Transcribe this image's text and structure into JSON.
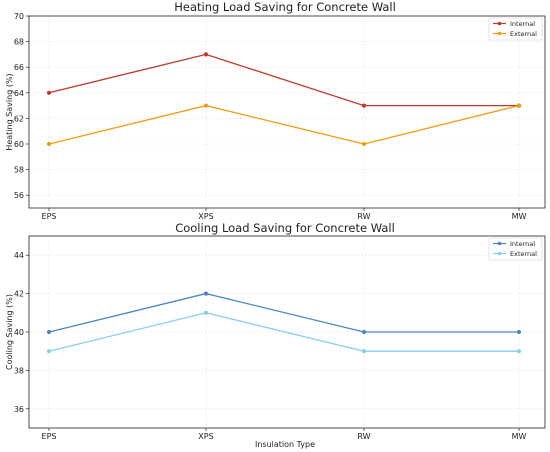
{
  "chart_data": [
    {
      "type": "line",
      "title": "Heating Load Saving for Concrete Wall",
      "xlabel": "",
      "ylabel": "Heating Saving (%)",
      "categories": [
        "EPS",
        "XPS",
        "RW",
        "MW"
      ],
      "ylim": [
        55,
        70
      ],
      "yticks": [
        56,
        58,
        60,
        62,
        64,
        66,
        68,
        70
      ],
      "grid": true,
      "legend_position": "top-right",
      "series": [
        {
          "name": "Internal",
          "values": [
            64,
            67,
            63,
            63
          ],
          "color": "#c0392b"
        },
        {
          "name": "External",
          "values": [
            60,
            63,
            60,
            63
          ],
          "color": "#f39c12"
        }
      ]
    },
    {
      "type": "line",
      "title": "Cooling Load Saving for Concrete Wall",
      "xlabel": "Insulation Type",
      "ylabel": "Cooling Saving (%)",
      "categories": [
        "EPS",
        "XPS",
        "RW",
        "MW"
      ],
      "ylim": [
        35,
        45
      ],
      "yticks": [
        36,
        38,
        40,
        42,
        44
      ],
      "grid": true,
      "legend_position": "top-right",
      "series": [
        {
          "name": "Internal",
          "values": [
            40,
            42,
            40,
            40
          ],
          "color": "#4a86c5"
        },
        {
          "name": "External",
          "values": [
            39,
            41,
            39,
            39
          ],
          "color": "#87ceeb"
        }
      ]
    }
  ]
}
